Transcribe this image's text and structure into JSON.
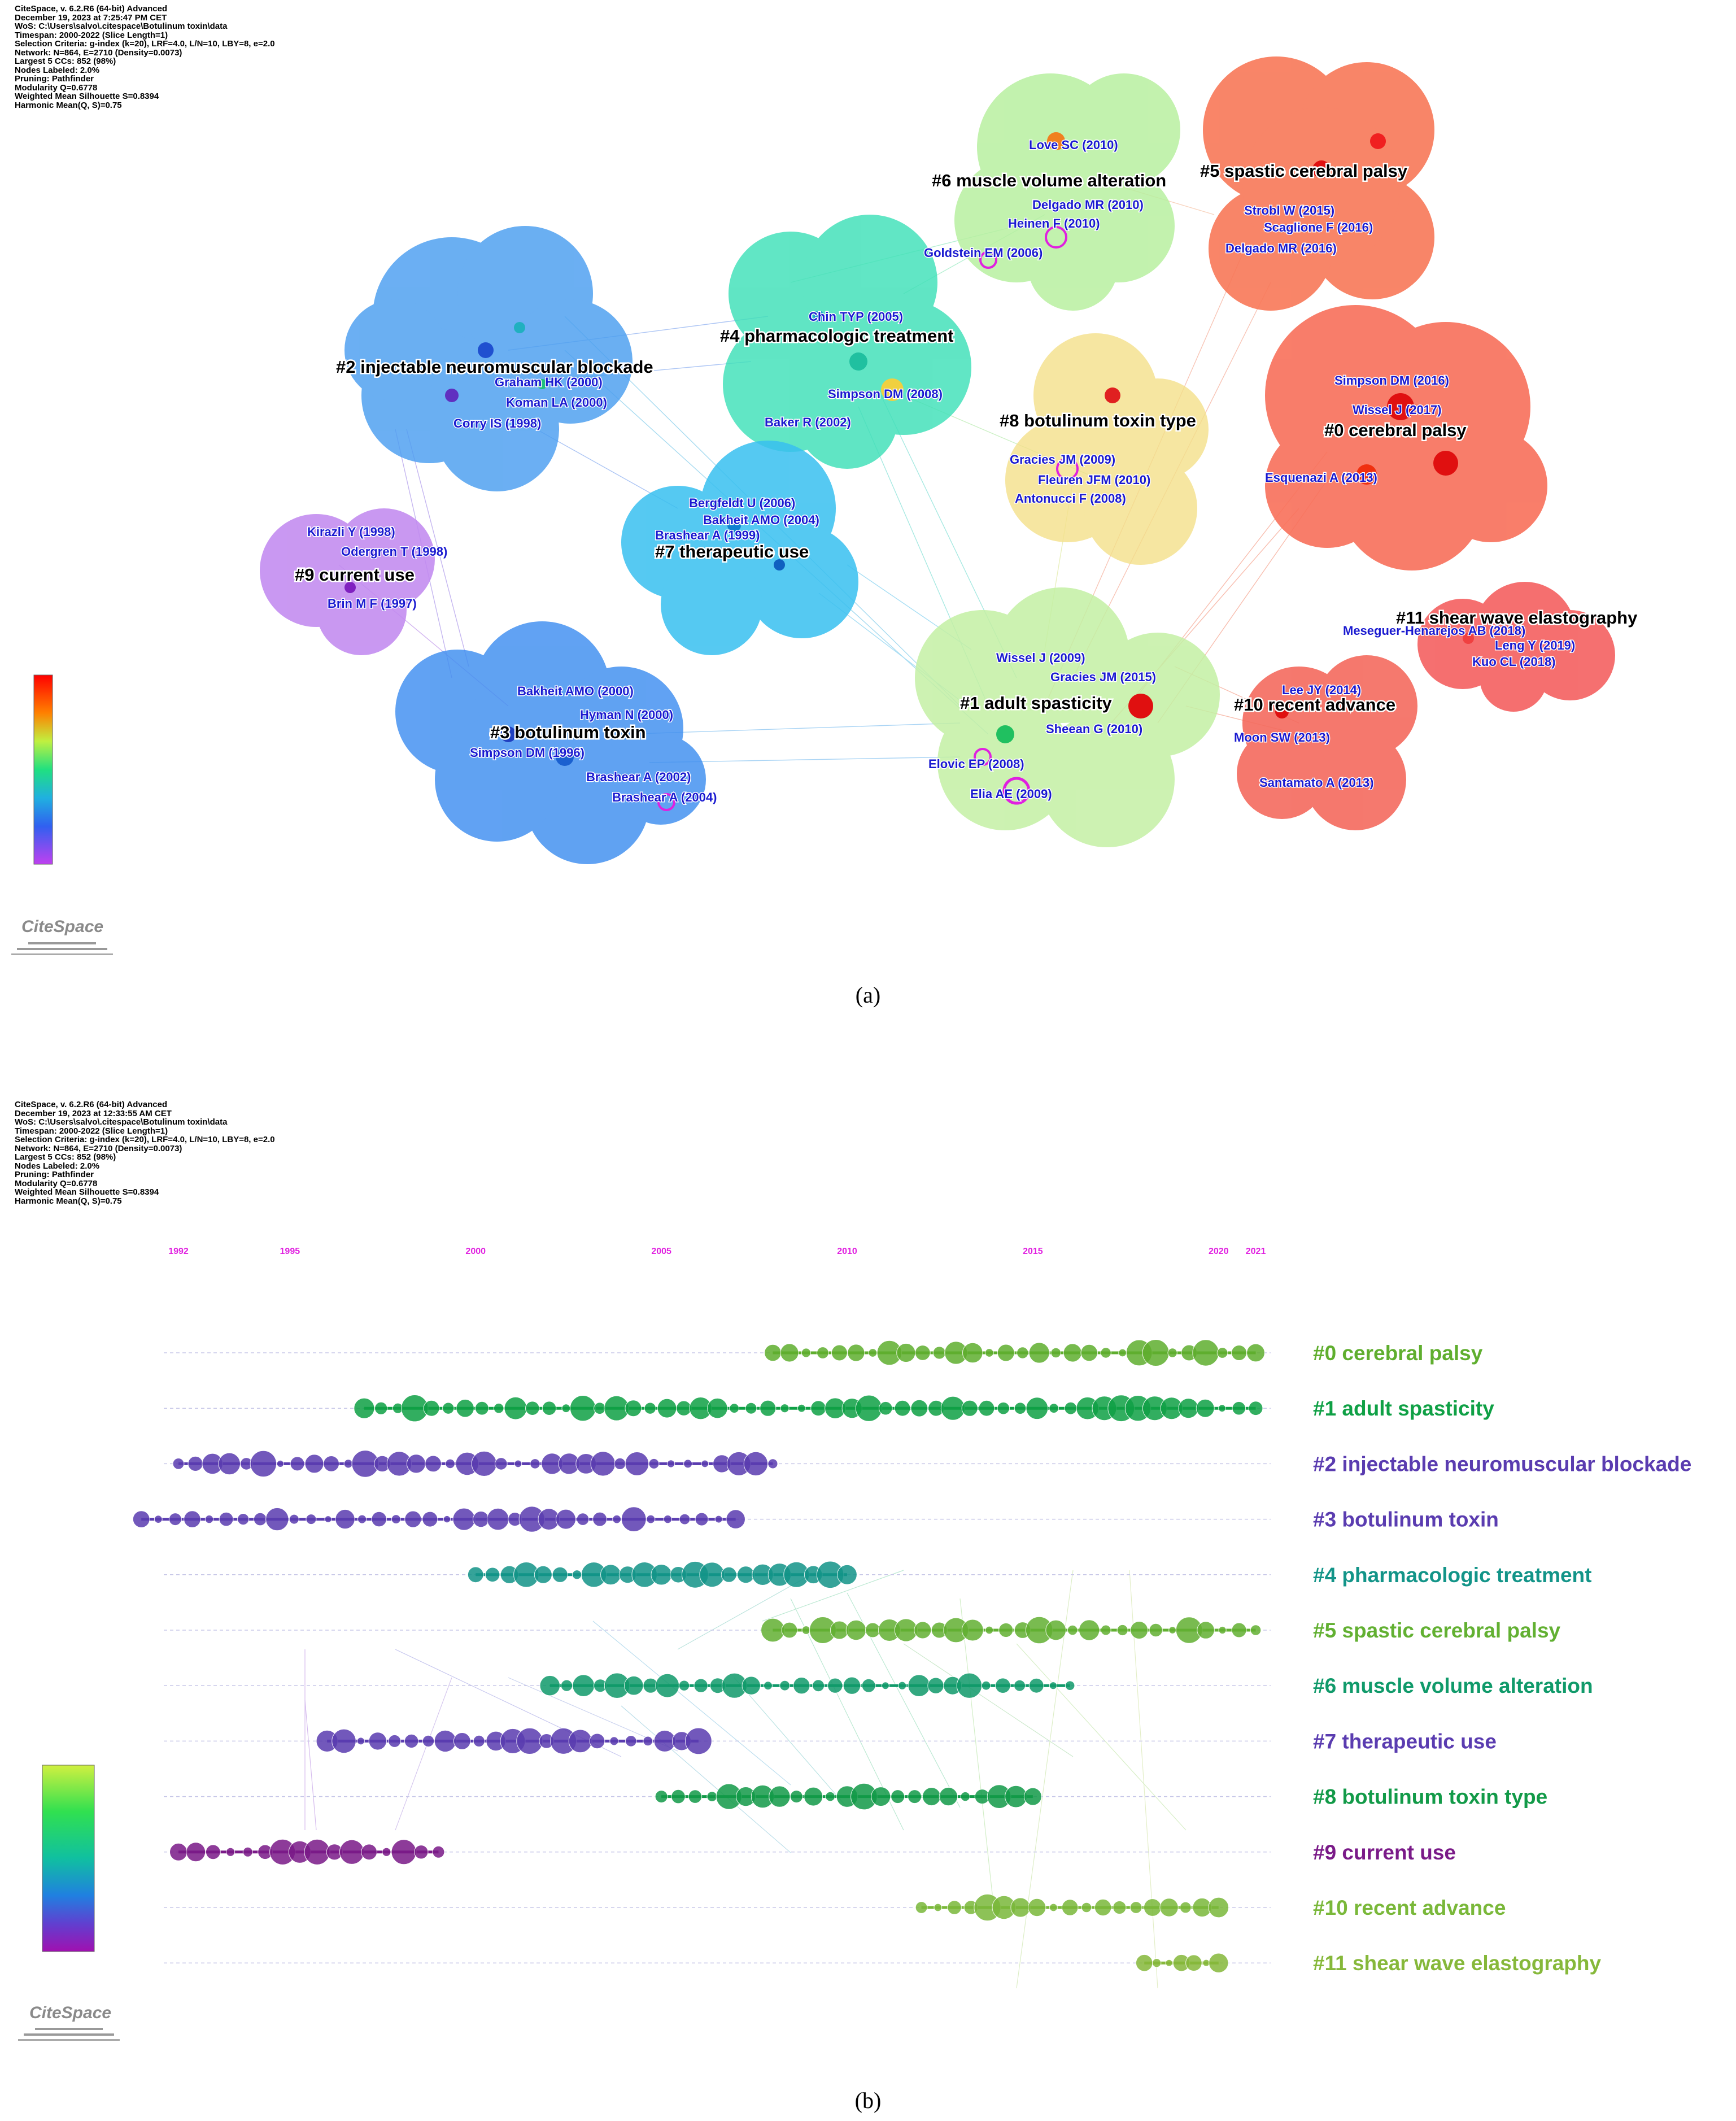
{
  "panel_a": {
    "meta": [
      "CiteSpace, v. 6.2.R6 (64-bit) Advanced",
      "December 19, 2023 at 7:25:47 PM CET",
      "WoS: C:\\Users\\salvo\\.citespace\\Botulinum toxin\\data",
      "Timespan: 2000-2022 (Slice Length=1)",
      "Selection Criteria: g-index (k=20), LRF=4.0, L/N=10, LBY=8, e=2.0",
      "Network: N=864, E=2710 (Density=0.0073)",
      "Largest 5 CCs: 852 (98%)",
      "Nodes Labeled: 2.0%",
      "Pruning: Pathfinder",
      "Modularity Q=0.6778",
      "Weighted Mean Silhouette S=0.8394",
      "Harmonic Mean(Q, S)=0.75"
    ],
    "clusters": {
      "c0": "#0 cerebral palsy",
      "c1": "#1 adult spasticity",
      "c2": "#2 injectable neuromuscular blockade",
      "c3": "#3 botulinum toxin",
      "c4": "#4 pharmacologic treatment",
      "c5": "#5 spastic cerebral palsy",
      "c6": "#6 muscle volume alteration",
      "c7": "#7 therapeutic use",
      "c8": "#8 botulinum toxin type",
      "c9": "#9 current use",
      "c10": "#10 recent advance",
      "c11": "#11 shear wave elastography"
    },
    "refs": {
      "love": "Love SC (2010)",
      "delgado2010": "Delgado MR (2010)",
      "heinen": "Heinen F (2010)",
      "goldstein": "Goldstein EM (2006)",
      "strobl": "Strobl W (2015)",
      "scaglione": "Scaglione F (2016)",
      "delgado2016": "Delgado MR (2016)",
      "chin": "Chin TYP (2005)",
      "simpson2008": "Simpson DM (2008)",
      "baker": "Baker R (2002)",
      "graham": "Graham HK (2000)",
      "koman": "Koman LA (2000)",
      "corry": "Corry IS (1998)",
      "simpson2016": "Simpson DM (2016)",
      "wissel2017": "Wissel J (2017)",
      "esquenazi": "Esquenazi A (2013)",
      "gracies2009": "Gracies JM (2009)",
      "fleuren": "Fleuren JFM (2010)",
      "antonucci": "Antonucci F (2008)",
      "bergfeldt": "Bergfeldt U (2006)",
      "bakheit2004": "Bakheit AMO (2004)",
      "brashear1999": "Brashear A (1999)",
      "kirazli": "Kirazli Y (1998)",
      "odergren": "Odergren T (1998)",
      "brin": "Brin M F (1997)",
      "meseguer": "Meseguer-Henarejos AB (2018)",
      "leng": "Leng Y (2019)",
      "kuo": "Kuo CL (2018)",
      "wissel2009": "Wissel J (2009)",
      "gracies2015": "Gracies JM (2015)",
      "sheean": "Sheean G (2010)",
      "elovic": "Elovic EP (2008)",
      "elia": "Elia AE (2009)",
      "lee": "Lee JY (2014)",
      "moon": "Moon SW (2013)",
      "santamato": "Santamato A (2013)",
      "bakheit2000": "Bakheit AMO (2000)",
      "hyman": "Hyman N (2000)",
      "simpson1996": "Simpson DM (1996)",
      "brashear2002": "Brashear A (2002)",
      "brashear2004": "Brashear A (2004)"
    },
    "logo": "CiteSpace",
    "caption": "(a)"
  },
  "panel_b": {
    "meta": [
      "CiteSpace, v. 6.2.R6 (64-bit) Advanced",
      "December 19, 2023 at 12:33:55 AM CET",
      "WoS: C:\\Users\\salvo\\.citespace\\Botulinum toxin\\data",
      "Timespan: 2000-2022 (Slice Length=1)",
      "Selection Criteria: g-index (k=20), LRF=4.0, L/N=10, LBY=8, e=2.0",
      "Network: N=864, E=2710 (Density=0.0073)",
      "Largest 5 CCs: 852 (98%)",
      "Nodes Labeled: 2.0%",
      "Pruning: Pathfinder",
      "Modularity Q=0.6778",
      "Weighted Mean Silhouette S=0.8394",
      "Harmonic Mean(Q, S)=0.75"
    ],
    "years": [
      "1992",
      "1995",
      "2000",
      "2005",
      "2010",
      "2015",
      "2020",
      "2021"
    ],
    "year_values": [
      1992,
      1995,
      2000,
      2005,
      2010,
      2015,
      2020,
      2021
    ],
    "timelines": [
      {
        "label": "#0 cerebral palsy",
        "start": 2008,
        "end": 2021,
        "color": "#5fae2e"
      },
      {
        "label": "#1 adult spasticity",
        "start": 1997,
        "end": 2021,
        "color": "#0fa045"
      },
      {
        "label": "#2 injectable neuromuscular blockade",
        "start": 1992,
        "end": 2008,
        "color": "#5a3cb0"
      },
      {
        "label": "#3 botulinum toxin",
        "start": 1991,
        "end": 2007,
        "color": "#5a3cb0"
      },
      {
        "label": "#4 pharmacologic treatment",
        "start": 2000,
        "end": 2010,
        "color": "#129488"
      },
      {
        "label": "#5 spastic cerebral palsy",
        "start": 2008,
        "end": 2021,
        "color": "#62b032"
      },
      {
        "label": "#6 muscle volume alteration",
        "start": 2002,
        "end": 2016,
        "color": "#109a6a"
      },
      {
        "label": "#7 therapeutic use",
        "start": 1996,
        "end": 2006,
        "color": "#5a3cb0"
      },
      {
        "label": "#8 botulinum toxin type",
        "start": 2005,
        "end": 2015,
        "color": "#129a48"
      },
      {
        "label": "#9 current use",
        "start": 1992,
        "end": 1999,
        "color": "#7a1a88"
      },
      {
        "label": "#10 recent advance",
        "start": 2012,
        "end": 2020,
        "color": "#7ab83a"
      },
      {
        "label": "#11 shear wave elastography",
        "start": 2018,
        "end": 2020,
        "color": "#86b83a"
      }
    ],
    "logo": "CiteSpace",
    "caption": "(b)"
  }
}
